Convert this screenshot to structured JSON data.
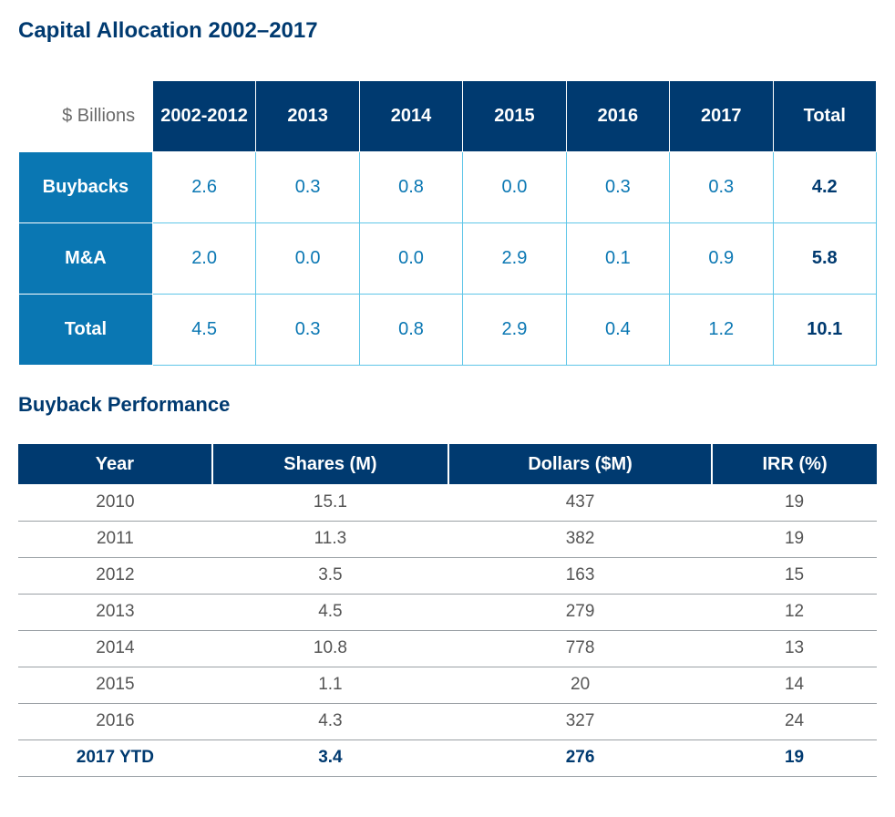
{
  "title": "Capital Allocation 2002–2017",
  "table1": {
    "corner_label": "$ Billions",
    "columns": [
      "2002-2012",
      "2013",
      "2014",
      "2015",
      "2016",
      "2017",
      "Total"
    ],
    "rows": [
      {
        "label": "Buybacks",
        "values": [
          "2.6",
          "0.3",
          "0.8",
          "0.0",
          "0.3",
          "0.3",
          "4.2"
        ]
      },
      {
        "label": "M&A",
        "values": [
          "2.0",
          "0.0",
          "0.0",
          "2.9",
          "0.1",
          "0.9",
          "5.8"
        ]
      },
      {
        "label": "Total",
        "values": [
          "4.5",
          "0.3",
          "0.8",
          "2.9",
          "0.4",
          "1.2",
          "10.1"
        ]
      }
    ],
    "header_bg": "#003a70",
    "rowhead_bg": "#0a77b3",
    "cell_text_color": "#0a77b3",
    "cell_border_color": "#5fc6e8",
    "total_text_color": "#003a70"
  },
  "subtitle": "Buyback Performance",
  "table2": {
    "columns": [
      "Year",
      "Shares (M)",
      "Dollars ($M)",
      "IRR (%)"
    ],
    "rows": [
      {
        "cells": [
          "2010",
          "15.1",
          "437",
          "19"
        ],
        "bold": false
      },
      {
        "cells": [
          "2011",
          "11.3",
          "382",
          "19"
        ],
        "bold": false
      },
      {
        "cells": [
          "2012",
          "3.5",
          "163",
          "15"
        ],
        "bold": false
      },
      {
        "cells": [
          "2013",
          "4.5",
          "279",
          "12"
        ],
        "bold": false
      },
      {
        "cells": [
          "2014",
          "10.8",
          "778",
          "13"
        ],
        "bold": false
      },
      {
        "cells": [
          "2015",
          "1.1",
          "20",
          "14"
        ],
        "bold": false
      },
      {
        "cells": [
          "2016",
          "4.3",
          "327",
          "24"
        ],
        "bold": false
      },
      {
        "cells": [
          "2017 YTD",
          "3.4",
          "276",
          "19"
        ],
        "bold": true
      }
    ],
    "header_bg": "#003a70",
    "row_border_color": "#9aa0a5",
    "text_color": "#555555",
    "bold_text_color": "#003a70"
  }
}
